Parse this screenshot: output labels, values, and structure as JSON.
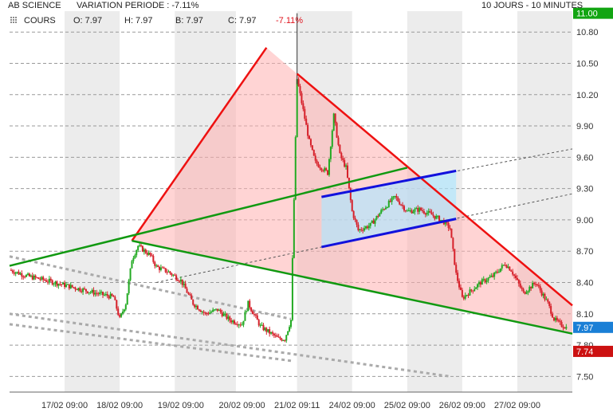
{
  "header": {
    "symbol": "AB SCIENCE",
    "variation_label": "VARIATION PERIODE : -7.11%",
    "period": "10 JOURS - 10 MINUTES",
    "series_label": "COURS",
    "open": "O: 7.97",
    "high": "H: 7.97",
    "low": "B: 7.97",
    "close": "C: 7.97",
    "change": "-7.11%"
  },
  "colors": {
    "up_candle": "#22aa22",
    "down_candle": "#d6202a",
    "resistance_line": "#ee1111",
    "support_line": "#119911",
    "channel_line": "#1111dd",
    "triangle_fill": "#ffb0b0",
    "channel_fill": "#aee6ff",
    "last_price_badge": "#1a7fd6",
    "low_price_badge": "#cc1111"
  },
  "chart_data": {
    "type": "candlestick",
    "x_ticks": [
      "17/02 09:00",
      "18/02 09:00",
      "19/02 09:00",
      "20/02 09:00",
      "21/02 09:11",
      "24/02 09:00",
      "25/02 09:00",
      "26/02 09:00",
      "27/02 09:00"
    ],
    "y_ticks": [
      "10.80",
      "10.50",
      "10.20",
      "9.90",
      "9.60",
      "9.30",
      "9.00",
      "8.70",
      "8.40",
      "8.10",
      "7.80",
      "7.50"
    ],
    "ylim": [
      7.35,
      11.0
    ],
    "top_label": "11.00",
    "last_price": "7.97",
    "low_marker": "7.74",
    "grid": "horizontal dashed",
    "price_path": [
      [
        0,
        8.52
      ],
      [
        3,
        8.46
      ],
      [
        6,
        8.42
      ],
      [
        10,
        8.36
      ],
      [
        14,
        8.3
      ],
      [
        17,
        8.26
      ],
      [
        18,
        8.05
      ],
      [
        19,
        8.2
      ],
      [
        20,
        8.62
      ],
      [
        21,
        8.75
      ],
      [
        23,
        8.66
      ],
      [
        24,
        8.55
      ],
      [
        26,
        8.5
      ],
      [
        28,
        8.42
      ],
      [
        30,
        8.2
      ],
      [
        32,
        8.1
      ],
      [
        34,
        8.14
      ],
      [
        36,
        8.04
      ],
      [
        38,
        8.0
      ],
      [
        39,
        8.2
      ],
      [
        41,
        7.98
      ],
      [
        43,
        7.9
      ],
      [
        44,
        7.86
      ],
      [
        45,
        7.86
      ],
      [
        46,
        8.04
      ],
      [
        47,
        10.35
      ],
      [
        48,
        10.05
      ],
      [
        49,
        9.75
      ],
      [
        50,
        9.55
      ],
      [
        52,
        9.45
      ],
      [
        53,
        10.0
      ],
      [
        54,
        9.62
      ],
      [
        55,
        9.5
      ],
      [
        56,
        9.08
      ],
      [
        57,
        8.9
      ],
      [
        59,
        8.95
      ],
      [
        61,
        9.1
      ],
      [
        63,
        9.22
      ],
      [
        65,
        9.08
      ],
      [
        67,
        9.1
      ],
      [
        69,
        9.05
      ],
      [
        71,
        8.98
      ],
      [
        72,
        8.92
      ],
      [
        73,
        8.48
      ],
      [
        74,
        8.25
      ],
      [
        75,
        8.3
      ],
      [
        77,
        8.4
      ],
      [
        79,
        8.46
      ],
      [
        81,
        8.58
      ],
      [
        82,
        8.52
      ],
      [
        84,
        8.3
      ],
      [
        86,
        8.4
      ],
      [
        88,
        8.2
      ],
      [
        89,
        8.05
      ],
      [
        90,
        8.0
      ],
      [
        91,
        7.97
      ]
    ],
    "trendlines": [
      {
        "color": "red",
        "from": [
          20,
          8.8
        ],
        "to": [
          42,
          10.65
        ]
      },
      {
        "color": "red",
        "from": [
          47,
          10.4
        ],
        "to": [
          92,
          8.18
        ]
      },
      {
        "color": "green",
        "from": [
          0,
          8.56
        ],
        "to": [
          65,
          9.5
        ]
      },
      {
        "color": "green",
        "from": [
          20,
          8.8
        ],
        "to": [
          92,
          7.91
        ]
      },
      {
        "color": "blue",
        "from": [
          51,
          9.22
        ],
        "to": [
          73,
          9.47
        ]
      },
      {
        "color": "blue",
        "from": [
          51,
          8.74
        ],
        "to": [
          73,
          9.01
        ]
      }
    ]
  }
}
